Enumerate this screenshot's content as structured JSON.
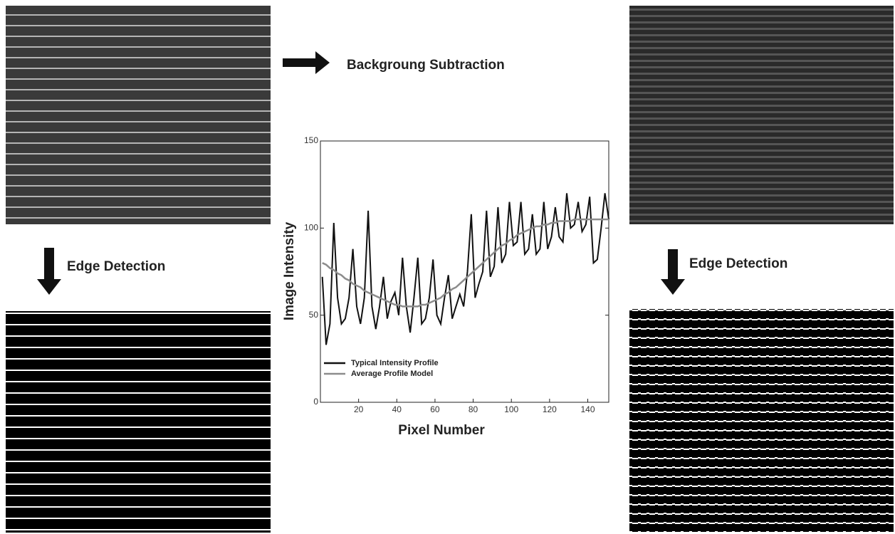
{
  "labels": {
    "top": "Backgroung Subtraction",
    "left": "Edge Detection",
    "right": "Edge Detection"
  },
  "chart_data": {
    "type": "line",
    "x_label": "Pixel Number",
    "y_label": "Image Intensity",
    "x": [
      1,
      3,
      5,
      7,
      9,
      11,
      13,
      15,
      17,
      19,
      21,
      23,
      25,
      27,
      29,
      31,
      33,
      35,
      37,
      39,
      41,
      43,
      45,
      47,
      49,
      51,
      53,
      55,
      57,
      59,
      61,
      63,
      65,
      67,
      69,
      71,
      73,
      75,
      77,
      79,
      81,
      83,
      85,
      87,
      89,
      91,
      93,
      95,
      97,
      99,
      101,
      103,
      105,
      107,
      109,
      111,
      113,
      115,
      117,
      119,
      121,
      123,
      125,
      127,
      129,
      131,
      133,
      135,
      137,
      139,
      141,
      143,
      145,
      147,
      149,
      151
    ],
    "series": [
      {
        "name": "Typical Intensity Profile",
        "color": "#111111",
        "values": [
          72,
          33,
          45,
          103,
          60,
          45,
          48,
          60,
          88,
          55,
          45,
          60,
          110,
          55,
          42,
          55,
          72,
          48,
          58,
          63,
          50,
          83,
          55,
          40,
          60,
          83,
          45,
          48,
          60,
          82,
          50,
          45,
          60,
          73,
          48,
          55,
          62,
          55,
          75,
          108,
          60,
          68,
          75,
          110,
          72,
          78,
          112,
          80,
          85,
          115,
          90,
          92,
          115,
          85,
          88,
          108,
          85,
          88,
          115,
          88,
          95,
          112,
          95,
          92,
          120,
          100,
          102,
          115,
          98,
          102,
          118,
          80,
          82,
          100,
          120,
          105
        ]
      },
      {
        "name": "Average Profile Model",
        "color": "#8c8c8c",
        "values": [
          80,
          79,
          77,
          76,
          74,
          73,
          71,
          70,
          68,
          67,
          66,
          64,
          63,
          62,
          61,
          60,
          59,
          58,
          57,
          56,
          56,
          55,
          55,
          55,
          55,
          55,
          56,
          56,
          57,
          58,
          59,
          60,
          62,
          63,
          65,
          66,
          68,
          70,
          72,
          74,
          76,
          78,
          80,
          82,
          84,
          86,
          88,
          90,
          91,
          93,
          94,
          96,
          97,
          98,
          99,
          100,
          101,
          101,
          102,
          102,
          103,
          103,
          104,
          104,
          104,
          104,
          105,
          105,
          105,
          105,
          105,
          105,
          105,
          105,
          105,
          105
        ]
      }
    ],
    "xlim": [
      0,
      151
    ],
    "ylim": [
      0,
      150
    ],
    "xticks": [
      20,
      40,
      60,
      80,
      100,
      120,
      140
    ],
    "yticks": [
      0,
      50,
      100,
      150
    ],
    "grid": false,
    "legend": "lower left"
  }
}
